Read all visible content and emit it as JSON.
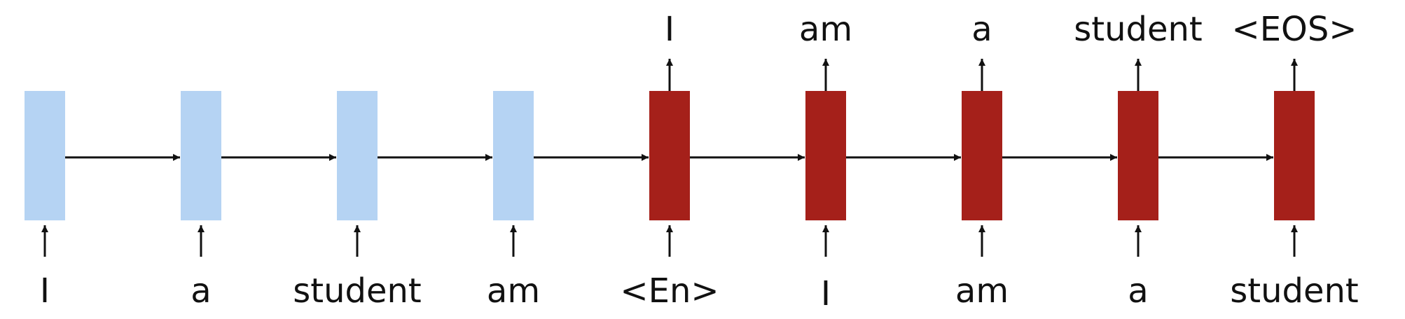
{
  "colors": {
    "encoder": "#b5d3f3",
    "decoder": "#a5201a",
    "arrow": "#111111",
    "background": "#ffffff"
  },
  "encoder": {
    "inputs": [
      "I",
      "a",
      "student",
      "am"
    ]
  },
  "decoder": {
    "inputs": [
      "<En>",
      "I",
      "am",
      "a",
      "student"
    ],
    "outputs": [
      "I",
      "am",
      "a",
      "student",
      "<EOS>"
    ]
  }
}
